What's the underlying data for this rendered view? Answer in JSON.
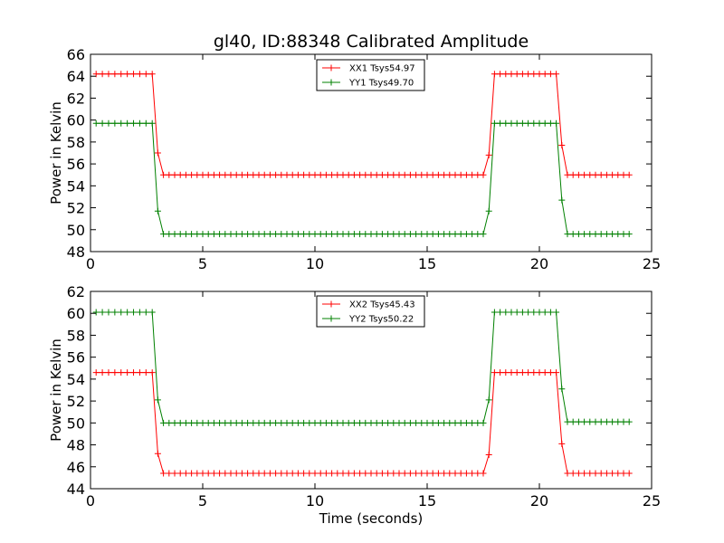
{
  "figure": {
    "title": "gl40, ID:88348 Calibrated Amplitude",
    "xlabel": "Time (seconds)"
  },
  "chart_data": [
    {
      "type": "line",
      "ylabel": "Power in Kelvin",
      "xlim": [
        0,
        25
      ],
      "ylim": [
        48,
        66
      ],
      "xticks": [
        0,
        5,
        10,
        15,
        20,
        25
      ],
      "yticks": [
        48,
        50,
        52,
        54,
        56,
        58,
        60,
        62,
        64,
        66
      ],
      "grid": false,
      "legend_position": "top-center",
      "series": [
        {
          "name": "XX1 Tsys54.97",
          "color": "#ff0000",
          "segments": [
            {
              "t0": 0.25,
              "t1": 2.75,
              "n": 10,
              "v": 64.2
            },
            {
              "t0": 3.0,
              "t1": 3.0,
              "n": 1,
              "v": 57.0
            },
            {
              "t0": 3.25,
              "t1": 17.5,
              "n": 58,
              "v": 55.0
            },
            {
              "t0": 17.75,
              "t1": 17.75,
              "n": 1,
              "v": 56.8
            },
            {
              "t0": 18.0,
              "t1": 20.75,
              "n": 12,
              "v": 64.2
            },
            {
              "t0": 21.0,
              "t1": 21.0,
              "n": 1,
              "v": 57.7
            },
            {
              "t0": 21.25,
              "t1": 24.0,
              "n": 12,
              "v": 55.0
            }
          ]
        },
        {
          "name": "YY1 Tsys49.70",
          "color": "#008000",
          "segments": [
            {
              "t0": 0.25,
              "t1": 2.75,
              "n": 10,
              "v": 59.7
            },
            {
              "t0": 3.0,
              "t1": 3.0,
              "n": 1,
              "v": 51.7
            },
            {
              "t0": 3.25,
              "t1": 17.5,
              "n": 58,
              "v": 49.6
            },
            {
              "t0": 17.75,
              "t1": 17.75,
              "n": 1,
              "v": 51.7
            },
            {
              "t0": 18.0,
              "t1": 20.75,
              "n": 12,
              "v": 59.7
            },
            {
              "t0": 21.0,
              "t1": 21.0,
              "n": 1,
              "v": 52.7
            },
            {
              "t0": 21.25,
              "t1": 24.0,
              "n": 12,
              "v": 49.6
            }
          ]
        }
      ]
    },
    {
      "type": "line",
      "ylabel": "Power in Kelvin",
      "xlim": [
        0,
        25
      ],
      "ylim": [
        44,
        62
      ],
      "xticks": [
        0,
        5,
        10,
        15,
        20,
        25
      ],
      "yticks": [
        44,
        46,
        48,
        50,
        52,
        54,
        56,
        58,
        60,
        62
      ],
      "grid": false,
      "legend_position": "top-center",
      "series": [
        {
          "name": "XX2 Tsys45.43",
          "color": "#ff0000",
          "segments": [
            {
              "t0": 0.25,
              "t1": 2.75,
              "n": 10,
              "v": 54.6
            },
            {
              "t0": 3.0,
              "t1": 3.0,
              "n": 1,
              "v": 47.2
            },
            {
              "t0": 3.25,
              "t1": 17.5,
              "n": 58,
              "v": 45.4
            },
            {
              "t0": 17.75,
              "t1": 17.75,
              "n": 1,
              "v": 47.1
            },
            {
              "t0": 18.0,
              "t1": 20.75,
              "n": 12,
              "v": 54.6
            },
            {
              "t0": 21.0,
              "t1": 21.0,
              "n": 1,
              "v": 48.1
            },
            {
              "t0": 21.25,
              "t1": 24.0,
              "n": 12,
              "v": 45.4
            }
          ]
        },
        {
          "name": "YY2 Tsys50.22",
          "color": "#008000",
          "segments": [
            {
              "t0": 0.25,
              "t1": 2.75,
              "n": 10,
              "v": 60.1
            },
            {
              "t0": 3.0,
              "t1": 3.0,
              "n": 1,
              "v": 52.1
            },
            {
              "t0": 3.25,
              "t1": 17.5,
              "n": 58,
              "v": 50.0
            },
            {
              "t0": 17.75,
              "t1": 17.75,
              "n": 1,
              "v": 52.1
            },
            {
              "t0": 18.0,
              "t1": 20.75,
              "n": 12,
              "v": 60.1
            },
            {
              "t0": 21.0,
              "t1": 21.0,
              "n": 1,
              "v": 53.1
            },
            {
              "t0": 21.25,
              "t1": 24.0,
              "n": 12,
              "v": 50.1
            }
          ]
        }
      ]
    }
  ]
}
